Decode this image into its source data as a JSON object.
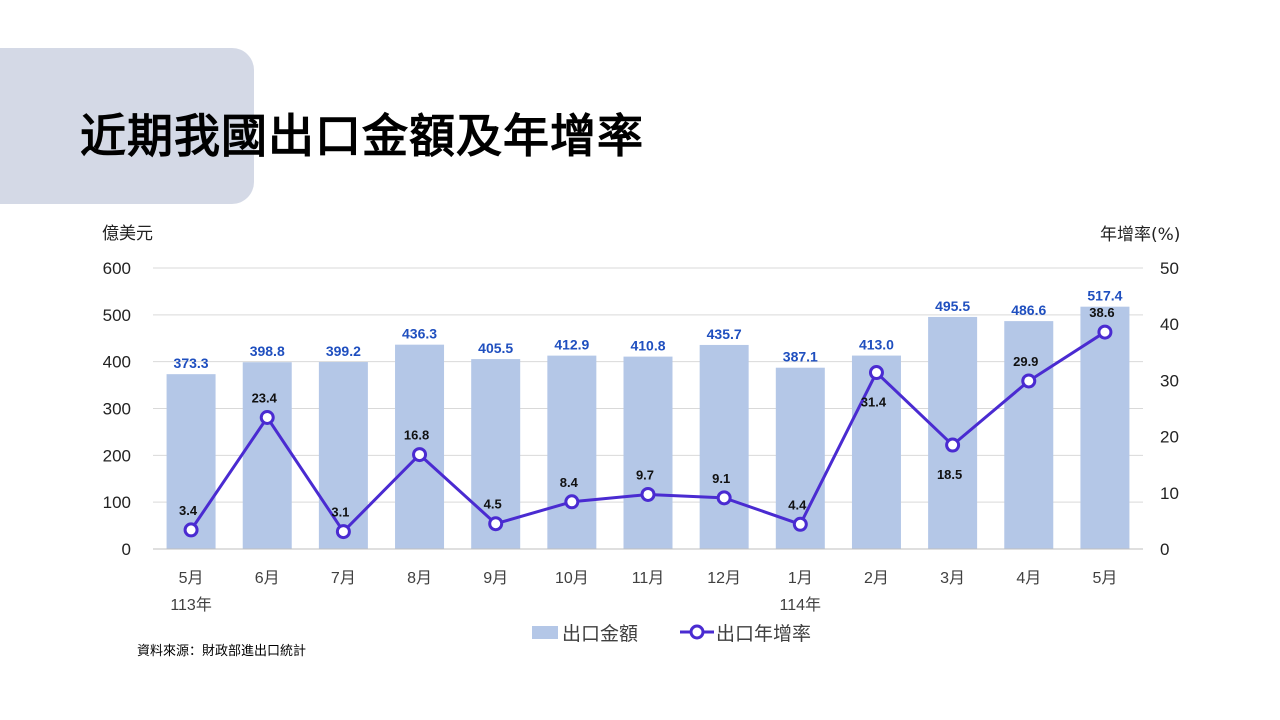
{
  "page": {
    "title": "近期我國出口金額及年增率",
    "source": "資料來源：財政部進出口統計"
  },
  "chart_data": {
    "type": "bar",
    "categories": [
      "5月",
      "6月",
      "7月",
      "8月",
      "9月",
      "10月",
      "11月",
      "12月",
      "1月",
      "2月",
      "3月",
      "4月",
      "5月"
    ],
    "year_labels": [
      {
        "index": 0,
        "label": "113年"
      },
      {
        "index": 8,
        "label": "114年"
      }
    ],
    "series": [
      {
        "name": "出口金額",
        "type": "bar",
        "axis": "left",
        "color": "#b4c7e7",
        "label_color": "#1f4fbf",
        "values": [
          373.3,
          398.8,
          399.2,
          436.3,
          405.5,
          412.9,
          410.8,
          435.7,
          387.1,
          413.0,
          495.5,
          486.6,
          517.4
        ],
        "labels": [
          "373.3",
          "398.8",
          "399.2",
          "436.3",
          "405.5",
          "412.9",
          "410.8",
          "435.7",
          "387.1",
          "413.0",
          "495.5",
          "486.6",
          "517.4"
        ]
      },
      {
        "name": "出口年增率",
        "type": "line",
        "axis": "right",
        "color": "#4a2bd1",
        "label_color": "#111111",
        "values": [
          3.4,
          23.4,
          3.1,
          16.8,
          4.5,
          8.4,
          9.7,
          9.1,
          4.4,
          31.4,
          18.5,
          29.9,
          38.6
        ],
        "labels": [
          "3.4",
          "23.4",
          "3.1",
          "16.8",
          "4.5",
          "8.4",
          "9.7",
          "9.1",
          "4.4",
          "31.4",
          "18.5",
          "29.9",
          "38.6"
        ]
      }
    ],
    "ylabel": "億美元",
    "y2label": "年增率(%)",
    "ylim": [
      0,
      600
    ],
    "y2lim": [
      0,
      50
    ],
    "yticks": [
      0,
      100,
      200,
      300,
      400,
      500,
      600
    ],
    "y2ticks": [
      0,
      10,
      20,
      30,
      40,
      50
    ],
    "grid": true,
    "legend_position": "bottom"
  }
}
